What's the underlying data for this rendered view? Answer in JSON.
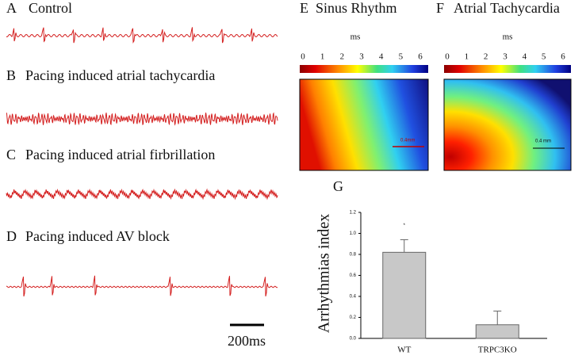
{
  "traces": [
    {
      "letter": "A",
      "title": "Control"
    },
    {
      "letter": "B",
      "title": "Pacing induced atrial tachycardia"
    },
    {
      "letter": "C",
      "title": "Pacing induced atrial firbrillation"
    },
    {
      "letter": "D",
      "title": "Pacing induced AV block"
    }
  ],
  "scale_bar": "200ms",
  "maps": [
    {
      "letter": "E",
      "title": "Sinus Rhythm",
      "unit": "ms",
      "scale": "0.4mm"
    },
    {
      "letter": "F",
      "title": "Atrial Tachycardia",
      "unit": "ms",
      "scale": "0.4 mm"
    }
  ],
  "colorbar_ticks": [
    0,
    1,
    2,
    3,
    4,
    5,
    6
  ],
  "chart_data": {
    "type": "bar",
    "title": "G",
    "y_label": "Arrhythmias index",
    "categories": [
      "WT",
      "TRPC3KO"
    ],
    "values": [
      0.82,
      0.13
    ],
    "errors": [
      0.12,
      0.13
    ],
    "color": "#c8c8c8",
    "annotation": "*",
    "ylim": [
      0,
      1.2
    ],
    "yticks": [
      {
        "value": 0,
        "label": "0.0"
      },
      0.2,
      0.4,
      0.6,
      0.8,
      {
        "value": 1,
        "label": "1.0"
      },
      1.2
    ]
  }
}
